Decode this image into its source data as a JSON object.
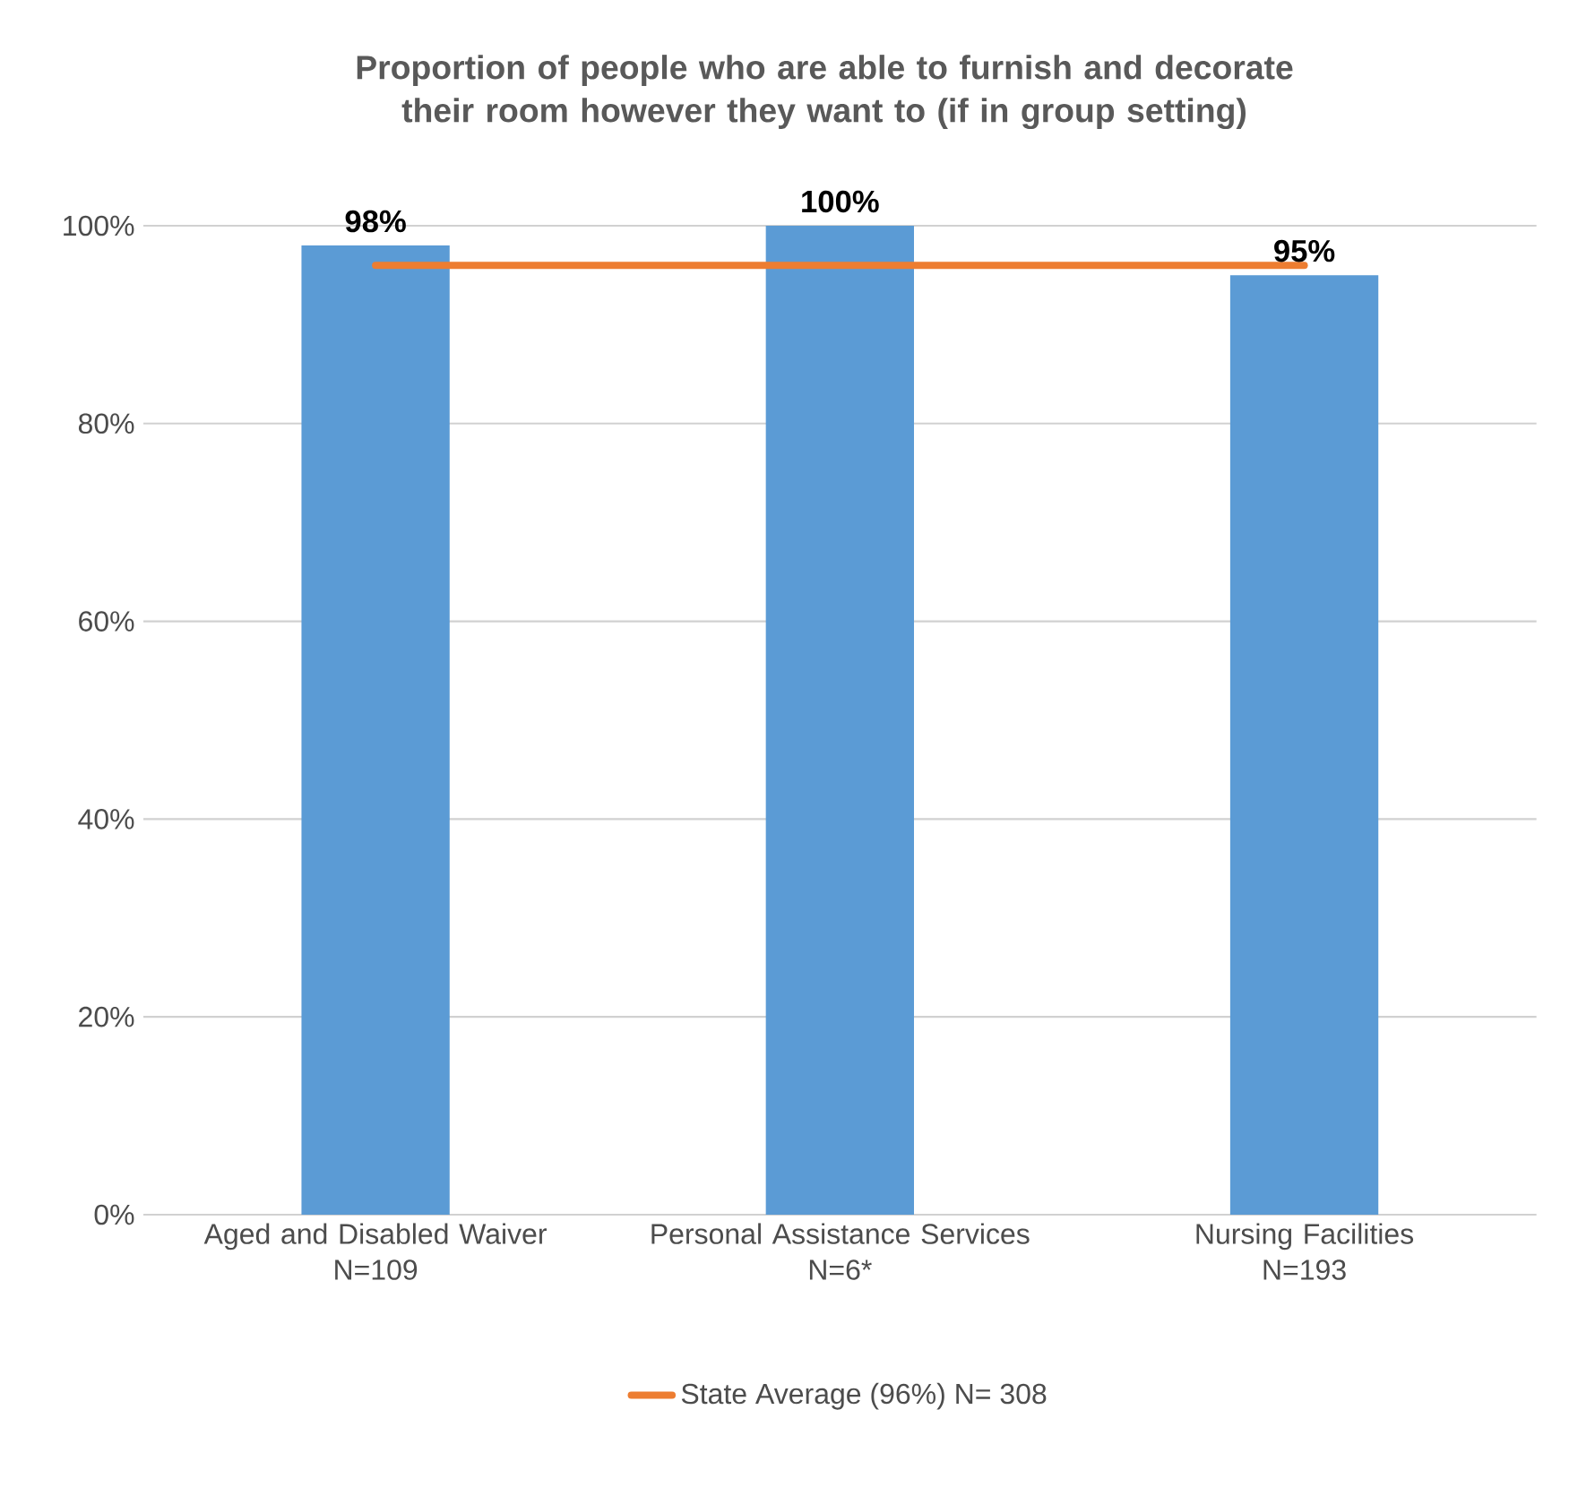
{
  "chart_data": {
    "type": "bar",
    "title": "Proportion of people who are able to furnish and decorate their room however they want to (if in group setting)",
    "categories": [
      "Aged and Disabled Waiver\nN=109",
      "Personal Assistance Services\nN=6*",
      "Nursing Facilities\nN=193"
    ],
    "values": [
      98,
      100,
      95
    ],
    "value_labels": [
      "98%",
      "100%",
      "95%"
    ],
    "color": "#5b9bd5",
    "ylim": [
      0,
      100
    ],
    "yticks": [
      {
        "value": 0,
        "label": "0%"
      },
      {
        "value": 20,
        "label": "20%"
      },
      {
        "value": 40,
        "label": "40%"
      },
      {
        "value": 60,
        "label": "60%"
      },
      {
        "value": 80,
        "label": "80%"
      },
      {
        "value": 100,
        "label": "100%"
      }
    ],
    "grid": "y",
    "legend": "bottom",
    "ref_lines": [
      {
        "axis": "y",
        "value": 96,
        "label": "State Average (96%) N= 308",
        "color": "#ed7d31"
      }
    ]
  }
}
